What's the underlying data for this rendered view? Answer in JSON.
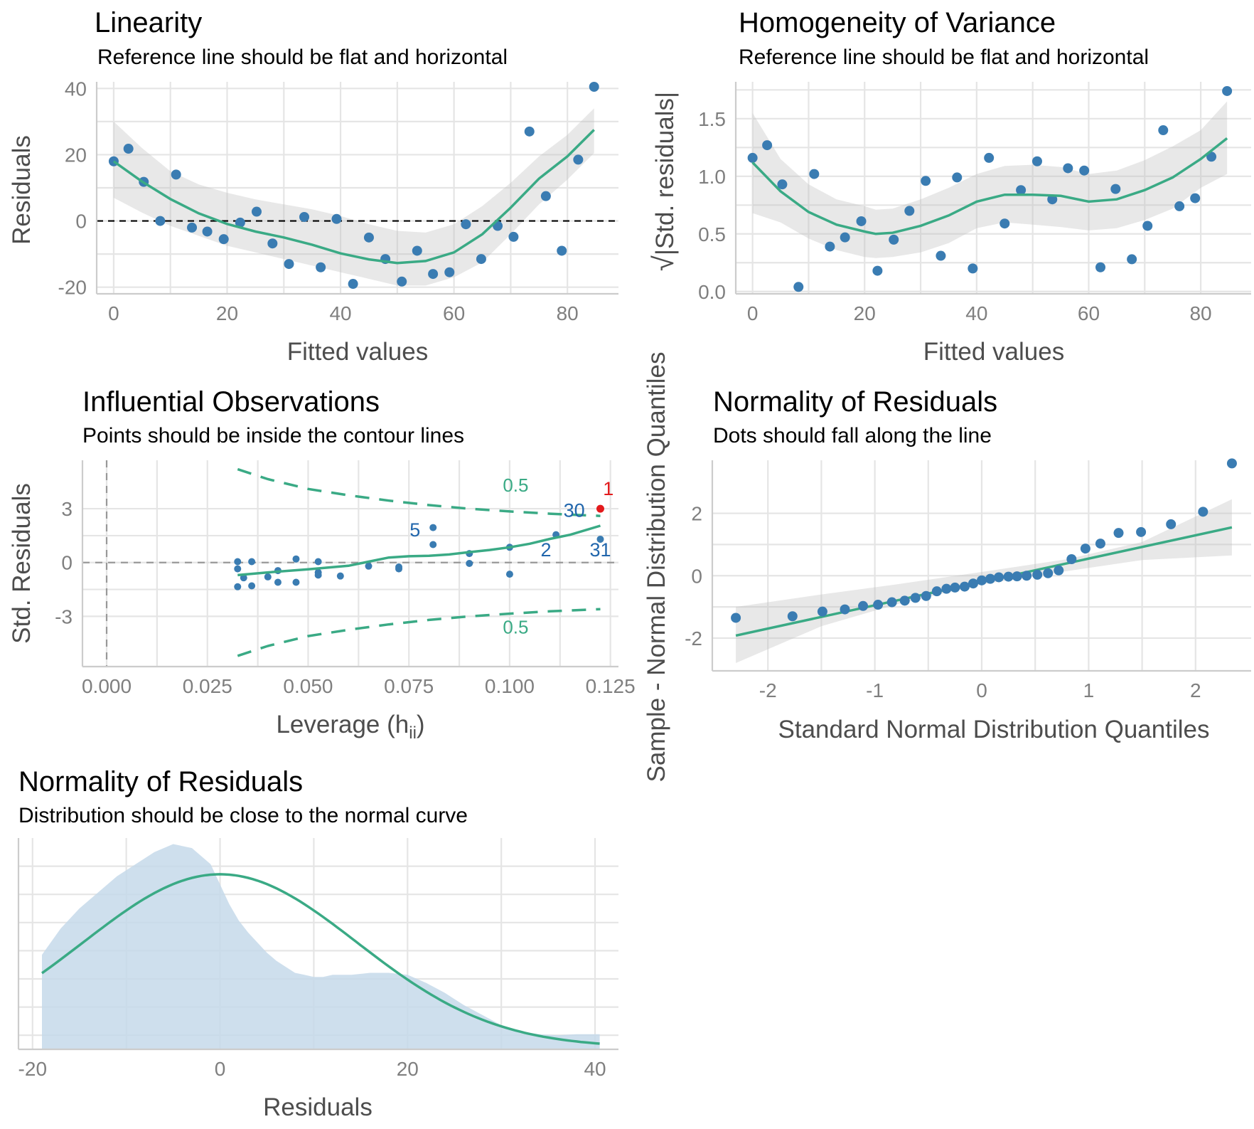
{
  "colors": {
    "points": "#3a7cb2",
    "fit_line": "#3aaa85",
    "confidence_band": "#d9d9d9",
    "influential_point": "#e31a1c",
    "density_fill": "#c6d9ea",
    "gridline": "#e5e5e5"
  },
  "chart_data": [
    {
      "id": "linearity",
      "type": "scatter",
      "title": "Linearity",
      "subtitle": "Reference line should be flat and horizontal",
      "xlabel": "Fitted values",
      "ylabel": "Residuals",
      "xlim": [
        -3,
        89
      ],
      "ylim": [
        -22,
        42
      ],
      "xticks": [
        0,
        20,
        40,
        60,
        80
      ],
      "yticks": [
        -20,
        0,
        20,
        40
      ],
      "grid": true,
      "reference_line_y": 0,
      "points": [
        [
          0,
          18
        ],
        [
          2.6,
          21.8
        ],
        [
          5.3,
          11.8
        ],
        [
          8.2,
          0
        ],
        [
          11,
          14
        ],
        [
          13.8,
          -2
        ],
        [
          16.5,
          -3.2
        ],
        [
          19.4,
          -5.5
        ],
        [
          22.3,
          -0.5
        ],
        [
          25.2,
          2.8
        ],
        [
          28,
          -6.8
        ],
        [
          30.9,
          -13
        ],
        [
          33.6,
          1.2
        ],
        [
          36.5,
          -14
        ],
        [
          39.3,
          0.6
        ],
        [
          42.2,
          -19
        ],
        [
          45,
          -5
        ],
        [
          47.9,
          -11.5
        ],
        [
          50.8,
          -18.3
        ],
        [
          53.5,
          -9
        ],
        [
          56.3,
          -16
        ],
        [
          59.2,
          -15.5
        ],
        [
          62.1,
          -1
        ],
        [
          64.8,
          -11.5
        ],
        [
          67.7,
          -1.5
        ],
        [
          70.5,
          -4.8
        ],
        [
          73.3,
          27
        ],
        [
          76.2,
          7.5
        ],
        [
          79,
          -9
        ],
        [
          81.9,
          18.5
        ],
        [
          84.7,
          40.5
        ]
      ],
      "fit": [
        [
          0,
          18
        ],
        [
          5,
          11.9
        ],
        [
          10,
          6.6
        ],
        [
          15,
          2.3
        ],
        [
          20,
          -0.9
        ],
        [
          25,
          -3.2
        ],
        [
          30,
          -5
        ],
        [
          35,
          -7.2
        ],
        [
          40,
          -9.8
        ],
        [
          45,
          -11.6
        ],
        [
          50,
          -12.7
        ],
        [
          55,
          -12.1
        ],
        [
          60,
          -9.5
        ],
        [
          65,
          -4
        ],
        [
          70,
          4
        ],
        [
          75,
          12.8
        ],
        [
          80,
          19.5
        ],
        [
          84.7,
          27.5
        ]
      ],
      "band_upper": [
        30,
        22,
        15,
        11,
        8.5,
        6.5,
        5,
        3.5,
        1.5,
        -1,
        -3,
        -3.5,
        -1,
        4.5,
        11.5,
        19.5,
        26,
        34
      ],
      "band_lower": [
        7,
        2.5,
        -1.5,
        -4.5,
        -7.5,
        -9.5,
        -11.5,
        -13.5,
        -15.5,
        -17.5,
        -19.5,
        -19.5,
        -17,
        -12.5,
        -4,
        5,
        12.5,
        20.5
      ]
    },
    {
      "id": "homogeneity",
      "type": "scatter",
      "title": "Homogeneity of Variance",
      "subtitle": "Reference line should be flat and horizontal",
      "xlabel": "Fitted values",
      "ylabel_prefix": "√",
      "ylabel": "|Std. residuals|",
      "xlim": [
        -3,
        89
      ],
      "ylim": [
        -0.02,
        1.82
      ],
      "xticks": [
        0,
        20,
        40,
        60,
        80
      ],
      "yticks": [
        "0.0",
        "0.5",
        "1.0",
        "1.5"
      ],
      "grid": true,
      "points": [
        [
          0,
          1.16
        ],
        [
          2.6,
          1.27
        ],
        [
          5.3,
          0.93
        ],
        [
          8.2,
          0.04
        ],
        [
          11,
          1.02
        ],
        [
          13.8,
          0.39
        ],
        [
          16.5,
          0.47
        ],
        [
          19.4,
          0.61
        ],
        [
          22.3,
          0.18
        ],
        [
          25.2,
          0.45
        ],
        [
          28,
          0.7
        ],
        [
          30.9,
          0.96
        ],
        [
          33.6,
          0.31
        ],
        [
          36.5,
          0.99
        ],
        [
          39.3,
          0.2
        ],
        [
          42.2,
          1.16
        ],
        [
          45,
          0.59
        ],
        [
          47.9,
          0.88
        ],
        [
          50.8,
          1.13
        ],
        [
          53.5,
          0.8
        ],
        [
          56.3,
          1.07
        ],
        [
          59.2,
          1.05
        ],
        [
          62.1,
          0.21
        ],
        [
          64.8,
          0.89
        ],
        [
          67.7,
          0.28
        ],
        [
          70.5,
          0.57
        ],
        [
          73.3,
          1.4
        ],
        [
          76.2,
          0.74
        ],
        [
          79,
          0.81
        ],
        [
          81.9,
          1.17
        ],
        [
          84.7,
          1.74
        ]
      ],
      "fit": [
        [
          0,
          1.12
        ],
        [
          5,
          0.87
        ],
        [
          10,
          0.69
        ],
        [
          15,
          0.58
        ],
        [
          20,
          0.52
        ],
        [
          22,
          0.5
        ],
        [
          25,
          0.51
        ],
        [
          30,
          0.57
        ],
        [
          35,
          0.66
        ],
        [
          40,
          0.78
        ],
        [
          45,
          0.84
        ],
        [
          50,
          0.84
        ],
        [
          55,
          0.83
        ],
        [
          60,
          0.78
        ],
        [
          65,
          0.8
        ],
        [
          70,
          0.88
        ],
        [
          75,
          0.99
        ],
        [
          80,
          1.15
        ],
        [
          84.7,
          1.33
        ]
      ],
      "band_upper": [
        1.55,
        1.15,
        0.93,
        0.8,
        0.74,
        0.71,
        0.72,
        0.8,
        0.9,
        1.02,
        1.09,
        1.1,
        1.08,
        1.02,
        1.05,
        1.14,
        1.26,
        1.4,
        1.65
      ],
      "band_lower": [
        0.68,
        0.6,
        0.46,
        0.36,
        0.3,
        0.29,
        0.3,
        0.34,
        0.42,
        0.55,
        0.6,
        0.58,
        0.56,
        0.53,
        0.55,
        0.62,
        0.72,
        0.9,
        1.02
      ]
    },
    {
      "id": "influential",
      "type": "scatter",
      "title": "Influential Observations",
      "subtitle": "Points should be inside the contour lines",
      "xlabel_main": "Leverage (h",
      "xlabel_sub": "ii",
      "xlabel_close": ")",
      "ylabel": "Std. Residuals",
      "xlim": [
        -0.006,
        0.127
      ],
      "ylim": [
        -5.8,
        5.7
      ],
      "xticks": [
        "0.000",
        "0.025",
        "0.050",
        "0.075",
        "0.100",
        "0.125"
      ],
      "yticks": [
        -3,
        0,
        3
      ],
      "grid": true,
      "reference_line_x": 0,
      "reference_line_y": 0,
      "points": [
        [
          0.0325,
          0.05
        ],
        [
          0.0325,
          -0.35
        ],
        [
          0.0325,
          -1.35
        ],
        [
          0.034,
          -0.85
        ],
        [
          0.036,
          0.05
        ],
        [
          0.036,
          -1.3
        ],
        [
          0.04,
          -0.8
        ],
        [
          0.0425,
          -0.45
        ],
        [
          0.0425,
          -1.1
        ],
        [
          0.047,
          0.2
        ],
        [
          0.047,
          -1.1
        ],
        [
          0.0525,
          -0.55
        ],
        [
          0.0525,
          -0.7
        ],
        [
          0.0525,
          0.05
        ],
        [
          0.058,
          -0.75
        ],
        [
          0.065,
          -0.2
        ],
        [
          0.0725,
          -0.25
        ],
        [
          0.0725,
          -0.35
        ],
        [
          0.081,
          1.95
        ],
        [
          0.081,
          1.0
        ],
        [
          0.09,
          0.5
        ],
        [
          0.09,
          -0.05
        ],
        [
          0.1,
          0.85
        ],
        [
          0.1,
          -0.65
        ],
        [
          0.1115,
          1.55
        ],
        [
          0.1225,
          1.3
        ]
      ],
      "highlight_point": [
        0.1225,
        3.0
      ],
      "fit": [
        [
          0.0325,
          -0.7
        ],
        [
          0.04,
          -0.55
        ],
        [
          0.05,
          -0.38
        ],
        [
          0.06,
          -0.18
        ],
        [
          0.065,
          0.05
        ],
        [
          0.07,
          0.28
        ],
        [
          0.075,
          0.35
        ],
        [
          0.08,
          0.38
        ],
        [
          0.085,
          0.45
        ],
        [
          0.09,
          0.58
        ],
        [
          0.095,
          0.7
        ],
        [
          0.1,
          0.85
        ],
        [
          0.105,
          1.05
        ],
        [
          0.11,
          1.32
        ],
        [
          0.115,
          1.55
        ],
        [
          0.1225,
          2.05
        ]
      ],
      "contour_upper": [
        [
          0.0325,
          5.2
        ],
        [
          0.04,
          4.65
        ],
        [
          0.05,
          4.1
        ],
        [
          0.06,
          3.75
        ],
        [
          0.07,
          3.45
        ],
        [
          0.08,
          3.2
        ],
        [
          0.09,
          3.0
        ],
        [
          0.1,
          2.85
        ],
        [
          0.11,
          2.72
        ],
        [
          0.1225,
          2.6
        ]
      ],
      "contour_lower": [
        [
          0.0325,
          -5.2
        ],
        [
          0.04,
          -4.65
        ],
        [
          0.05,
          -4.1
        ],
        [
          0.06,
          -3.75
        ],
        [
          0.07,
          -3.45
        ],
        [
          0.08,
          -3.2
        ],
        [
          0.09,
          -3.0
        ],
        [
          0.1,
          -2.85
        ],
        [
          0.11,
          -2.72
        ],
        [
          0.1225,
          -2.6
        ]
      ],
      "contour_label_upper": "0.5",
      "contour_label_lower": "0.5",
      "point_labels": [
        {
          "text": "1",
          "x": 0.1245,
          "y": 3.75,
          "color": "#e31a1c"
        },
        {
          "text": "30",
          "x": 0.116,
          "y": 2.55,
          "color": "#2166ac"
        },
        {
          "text": "5",
          "x": 0.0765,
          "y": 1.45,
          "color": "#2166ac"
        },
        {
          "text": "2",
          "x": 0.109,
          "y": 0.35,
          "color": "#2166ac"
        },
        {
          "text": "31",
          "x": 0.1225,
          "y": 0.35,
          "color": "#2166ac"
        }
      ]
    },
    {
      "id": "qq",
      "type": "scatter",
      "title": "Normality of Residuals",
      "subtitle": "Dots should fall along the line",
      "xlabel": "Standard Normal Distribution Quantiles",
      "ylabel": "Sample - Normal Distribution Quantiles",
      "xlim": [
        -2.52,
        2.52
      ],
      "ylim": [
        -3.05,
        3.7
      ],
      "xticks": [
        -2,
        -1,
        0,
        1,
        2
      ],
      "yticks": [
        -2,
        0,
        2
      ],
      "grid": true,
      "points": [
        [
          -2.3,
          -1.35
        ],
        [
          -1.77,
          -1.3
        ],
        [
          -1.49,
          -1.15
        ],
        [
          -1.28,
          -1.08
        ],
        [
          -1.11,
          -0.97
        ],
        [
          -0.97,
          -0.93
        ],
        [
          -0.84,
          -0.85
        ],
        [
          -0.72,
          -0.8
        ],
        [
          -0.62,
          -0.71
        ],
        [
          -0.52,
          -0.65
        ],
        [
          -0.42,
          -0.5
        ],
        [
          -0.33,
          -0.42
        ],
        [
          -0.25,
          -0.38
        ],
        [
          -0.16,
          -0.35
        ],
        [
          -0.08,
          -0.25
        ],
        [
          0,
          -0.15
        ],
        [
          0.08,
          -0.1
        ],
        [
          0.16,
          -0.05
        ],
        [
          0.25,
          -0.03
        ],
        [
          0.33,
          -0.02
        ],
        [
          0.42,
          0.0
        ],
        [
          0.52,
          0.03
        ],
        [
          0.62,
          0.08
        ],
        [
          0.72,
          0.17
        ],
        [
          0.84,
          0.53
        ],
        [
          0.97,
          0.87
        ],
        [
          1.11,
          1.03
        ],
        [
          1.28,
          1.37
        ],
        [
          1.49,
          1.4
        ],
        [
          1.77,
          1.65
        ],
        [
          2.07,
          2.05
        ],
        [
          2.34,
          3.6
        ]
      ],
      "fit": [
        [
          -2.3,
          -1.92
        ],
        [
          2.34,
          1.55
        ]
      ],
      "band_x": [
        -2.3,
        -1.5,
        -0.8,
        0,
        0.8,
        1.5,
        2.34
      ],
      "band_upper": [
        -1.0,
        -0.6,
        -0.28,
        0.12,
        0.53,
        1.08,
        2.45
      ],
      "band_lower": [
        -2.8,
        -1.62,
        -0.92,
        -0.28,
        0.15,
        0.5,
        0.65
      ]
    },
    {
      "id": "density",
      "type": "area",
      "title": "Normality of Residuals",
      "subtitle": "Distribution should be close to the normal curve",
      "xlabel": "Residuals",
      "xlim": [
        -21.5,
        42.5
      ],
      "ylim": [
        0,
        1.05
      ],
      "xticks": [
        -20,
        0,
        20,
        40
      ],
      "grid": true,
      "density_x": [
        -19,
        -17,
        -15,
        -13,
        -11,
        -9,
        -7,
        -5,
        -3,
        -1,
        0,
        1,
        2,
        3,
        4,
        5,
        6,
        7,
        8,
        9,
        10,
        11,
        12,
        14,
        16,
        18,
        20,
        22,
        24,
        26,
        28,
        30,
        32,
        34,
        36,
        38,
        40.5
      ],
      "density_y": [
        0.47,
        0.6,
        0.7,
        0.78,
        0.86,
        0.92,
        0.98,
        1.02,
        1.0,
        0.92,
        0.82,
        0.72,
        0.64,
        0.58,
        0.53,
        0.48,
        0.44,
        0.41,
        0.38,
        0.37,
        0.36,
        0.36,
        0.37,
        0.37,
        0.38,
        0.38,
        0.37,
        0.33,
        0.28,
        0.22,
        0.17,
        0.12,
        0.09,
        0.075,
        0.07,
        0.075,
        0.075
      ],
      "normal_mean": 0,
      "normal_sd": 14.6,
      "normal_peak": 0.86,
      "normal_from": -19,
      "normal_to": 40.5
    }
  ]
}
